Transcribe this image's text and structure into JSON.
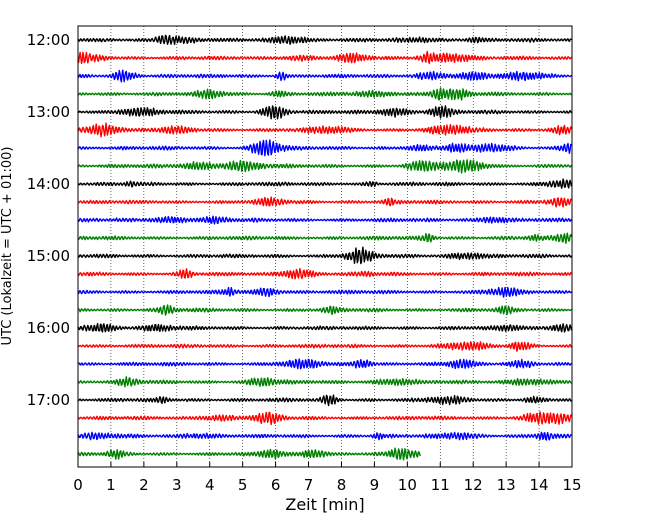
{
  "chart_data": {
    "type": "line",
    "title": "",
    "xlabel": "Zeit  [min]",
    "ylabel": "UTC (Lokalzeit = UTC + 01:00)",
    "xlim": [
      0,
      15
    ],
    "x_ticks": [
      "0",
      "1",
      "2",
      "3",
      "4",
      "5",
      "6",
      "7",
      "8",
      "9",
      "10",
      "11",
      "12",
      "13",
      "14",
      "15"
    ],
    "y_ticks": [
      "12:00",
      "13:00",
      "14:00",
      "15:00",
      "16:00",
      "17:00"
    ],
    "grid": "vertical-dotted",
    "colors": [
      "#000000",
      "#ff0000",
      "#0000ff",
      "#008000"
    ],
    "series": [
      {
        "start": "12:00",
        "color": "#000000",
        "end_min": 15
      },
      {
        "start": "12:15",
        "color": "#ff0000",
        "end_min": 15
      },
      {
        "start": "12:30",
        "color": "#0000ff",
        "end_min": 15
      },
      {
        "start": "12:45",
        "color": "#008000",
        "end_min": 15
      },
      {
        "start": "13:00",
        "color": "#000000",
        "end_min": 15
      },
      {
        "start": "13:15",
        "color": "#ff0000",
        "end_min": 15
      },
      {
        "start": "13:30",
        "color": "#0000ff",
        "end_min": 15
      },
      {
        "start": "13:45",
        "color": "#008000",
        "end_min": 15
      },
      {
        "start": "14:00",
        "color": "#000000",
        "end_min": 15
      },
      {
        "start": "14:15",
        "color": "#ff0000",
        "end_min": 15
      },
      {
        "start": "14:30",
        "color": "#0000ff",
        "end_min": 15
      },
      {
        "start": "14:45",
        "color": "#008000",
        "end_min": 15
      },
      {
        "start": "15:00",
        "color": "#000000",
        "end_min": 15
      },
      {
        "start": "15:15",
        "color": "#ff0000",
        "end_min": 15
      },
      {
        "start": "15:30",
        "color": "#0000ff",
        "end_min": 15
      },
      {
        "start": "15:45",
        "color": "#008000",
        "end_min": 15
      },
      {
        "start": "16:00",
        "color": "#000000",
        "end_min": 15
      },
      {
        "start": "16:15",
        "color": "#ff0000",
        "end_min": 15
      },
      {
        "start": "16:30",
        "color": "#0000ff",
        "end_min": 15
      },
      {
        "start": "16:45",
        "color": "#008000",
        "end_min": 15
      },
      {
        "start": "17:00",
        "color": "#000000",
        "end_min": 15
      },
      {
        "start": "17:15",
        "color": "#ff0000",
        "end_min": 15
      },
      {
        "start": "17:30",
        "color": "#0000ff",
        "end_min": 15
      },
      {
        "start": "17:45",
        "color": "#008000",
        "end_min": 10.4
      }
    ]
  }
}
